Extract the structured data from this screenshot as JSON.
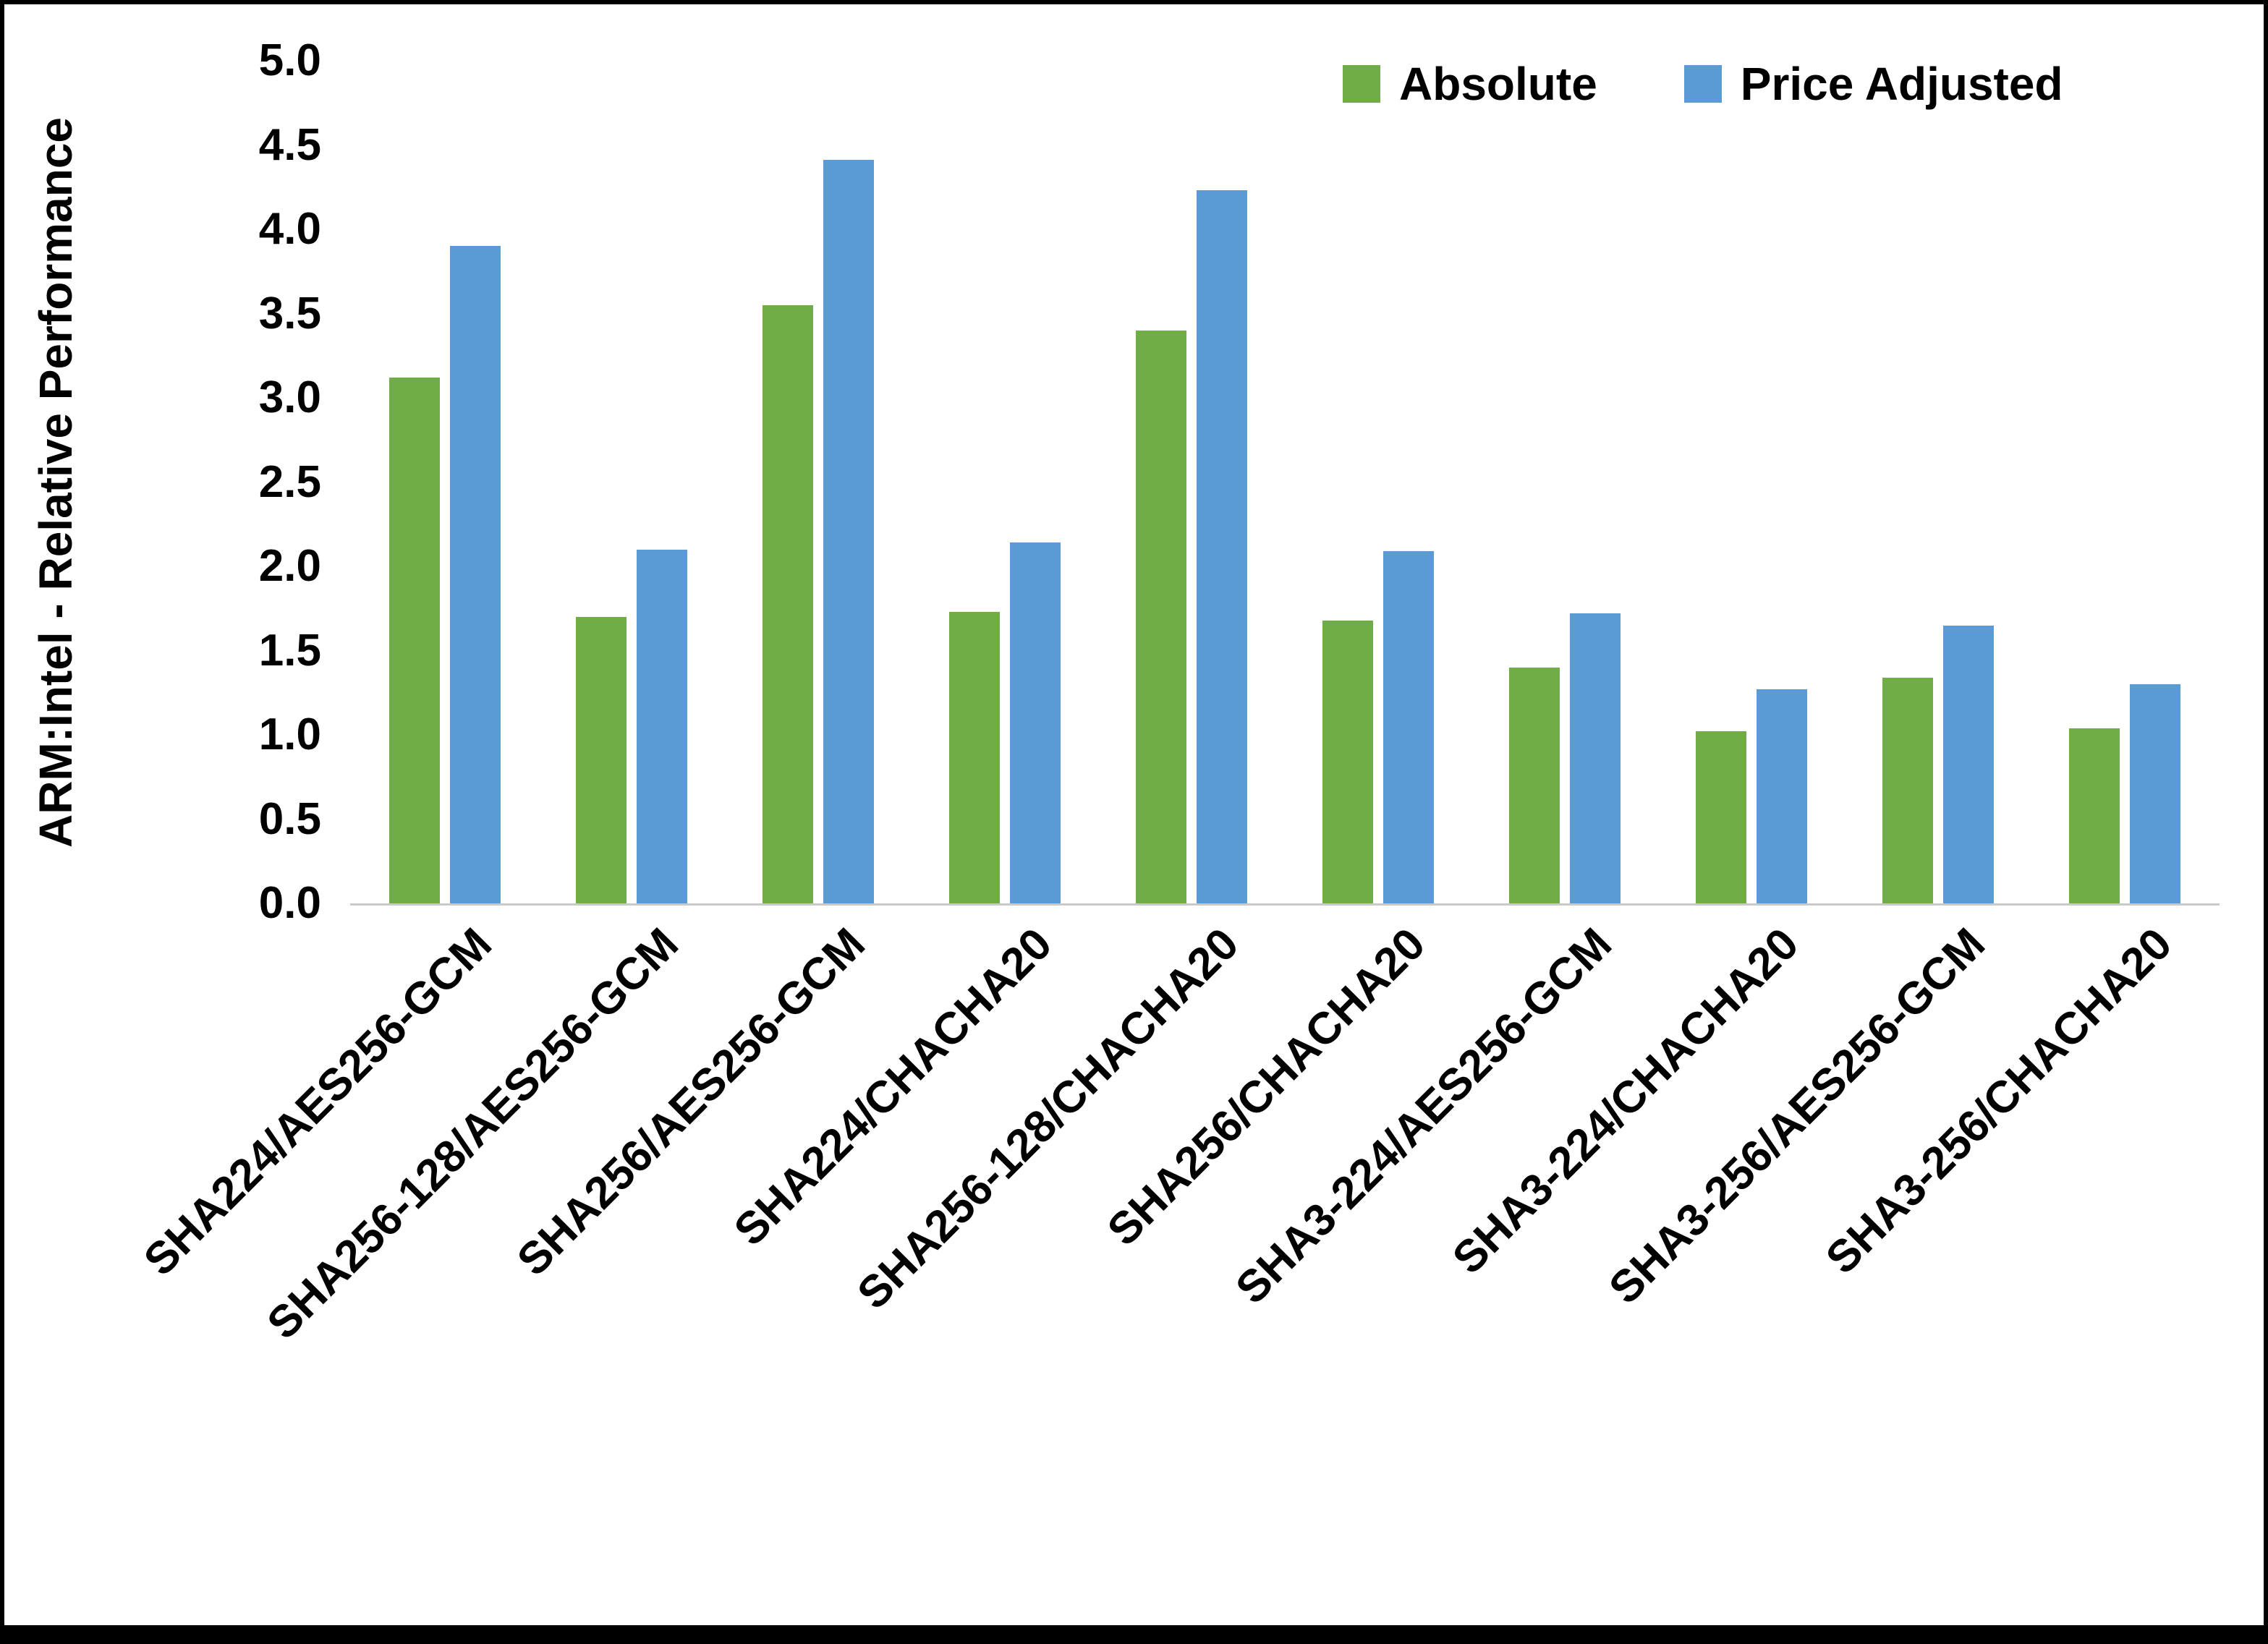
{
  "chart_data": {
    "type": "bar",
    "title": "",
    "xlabel": "",
    "ylabel": "ARM:Intel - Relative Performance",
    "ylim": [
      0,
      5
    ],
    "ytick_step": 0.5,
    "ytick_labels": [
      "0.0",
      "0.5",
      "1.0",
      "1.5",
      "2.0",
      "2.5",
      "3.0",
      "3.5",
      "4.0",
      "4.5",
      "5.0"
    ],
    "grid": false,
    "legend_position": "top-right",
    "categories": [
      "SHA224/AES256-GCM",
      "SHA256-128/AES256-GCM",
      "SHA256/AES256-GCM",
      "SHA224/CHACHA20",
      "SHA256-128/CHACHA20",
      "SHA256/CHACHA20",
      "SHA3-224/AES256-GCM",
      "SHA3-224/CHACHA20",
      "SHA3-256/AES256-GCM",
      "SHA3-256/CHACHA20"
    ],
    "series": [
      {
        "name": "Absolute",
        "color": "#70AD47",
        "values": [
          3.12,
          1.7,
          3.55,
          1.73,
          3.4,
          1.68,
          1.4,
          1.02,
          1.34,
          1.04
        ]
      },
      {
        "name": "Price Adjusted",
        "color": "#5B9BD5",
        "values": [
          3.9,
          2.1,
          4.41,
          2.14,
          4.23,
          2.09,
          1.72,
          1.27,
          1.65,
          1.3
        ]
      }
    ]
  },
  "colors": {
    "axis_line": "#c9c9c9",
    "text": "#000000",
    "frame_border": "#000000",
    "background": "#ffffff"
  }
}
